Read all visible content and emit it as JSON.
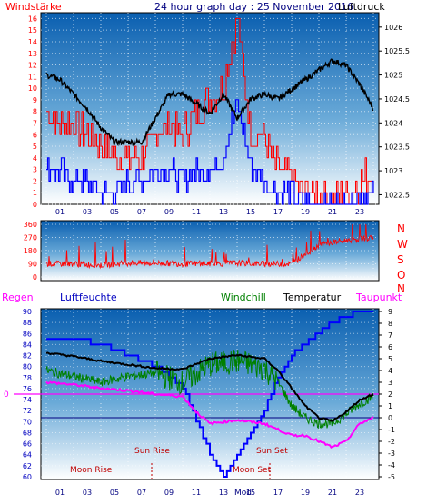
{
  "header": {
    "left": "Windstärke",
    "center": "24 hour graph day : 25 November 2016",
    "right": "Luftdruck"
  },
  "dir_labels": [
    "N",
    "W",
    "S",
    "O",
    "N"
  ],
  "lower_header": {
    "regen": "Regen",
    "luftfeuchte": "Luftfeuchte",
    "windchill": "Windchill",
    "temperatur": "Temperatur",
    "taupunkt": "Taupunkt"
  },
  "annotations": {
    "sun_rise": "Sun Rise",
    "sun_set": "Sun Set",
    "moon_rise": "Moon Rise",
    "moon_set": "Moon Set",
    "mod": "Mod"
  },
  "colors": {
    "wind_gust": "#ff0000",
    "wind_avg": "#0000ff",
    "pressure": "#000000",
    "humidity": "#0000ff",
    "windchill": "#008000",
    "temperature": "#000000",
    "dewpoint": "#ff00ff",
    "rain": "#ff00ff",
    "axis_blue": "#000080",
    "regen_label": "#ff00ff",
    "luftfeuchte_label": "#0000c0",
    "windchill_label": "#008000",
    "temperatur_label": "#000000",
    "taupunkt_label": "#ff00ff"
  },
  "chart_data": [
    {
      "type": "line",
      "name": "wind-pressure",
      "x_tick_labels": [
        "01",
        "03",
        "05",
        "07",
        "09",
        "11",
        "13",
        "15",
        "17",
        "19",
        "21",
        "23"
      ],
      "left_axis_ticks": [
        "16",
        "15",
        "14",
        "13",
        "12",
        "11",
        "10",
        "9",
        "8",
        "7",
        "6",
        "5",
        "4",
        "3",
        "2",
        "1",
        "0"
      ],
      "right_axis_ticks": [
        "1026",
        "1025.5",
        "1025",
        "1024.5",
        "1024",
        "1023.5",
        "1023",
        "1022.5"
      ],
      "left_ylim": [
        0,
        16.5
      ],
      "right_ylim": [
        1022.3,
        1026.3
      ],
      "series": [
        {
          "role": "pressure",
          "x": [
            0,
            1,
            2,
            3,
            4,
            5,
            6,
            7,
            8,
            9,
            10,
            11,
            12,
            13,
            14,
            15,
            16,
            17,
            18,
            19,
            20,
            21,
            22,
            23,
            24
          ],
          "values": [
            1025.0,
            1024.9,
            1024.6,
            1024.3,
            1023.9,
            1023.6,
            1023.6,
            1023.6,
            1024.1,
            1024.6,
            1024.6,
            1024.4,
            1024.2,
            1024.6,
            1024.1,
            1024.5,
            1024.6,
            1024.5,
            1024.7,
            1024.9,
            1025.1,
            1025.3,
            1025.2,
            1024.8,
            1024.3
          ]
        },
        {
          "role": "gust",
          "x": [
            0,
            1,
            2,
            3,
            4,
            5,
            6,
            7,
            8,
            9,
            10,
            11,
            12,
            13,
            14,
            15,
            16,
            17,
            18,
            19,
            20,
            21,
            22,
            23,
            24
          ],
          "values": [
            8,
            7,
            7,
            6,
            5,
            4,
            4,
            4,
            6,
            7,
            6,
            8,
            9,
            10,
            16,
            6,
            6,
            3,
            2,
            1,
            1,
            0,
            1,
            2,
            3
          ]
        },
        {
          "role": "average",
          "x": [
            0,
            1,
            2,
            3,
            4,
            5,
            6,
            7,
            8,
            9,
            10,
            11,
            12,
            13,
            14,
            15,
            16,
            17,
            18,
            19,
            20,
            21,
            22,
            23,
            24
          ],
          "values": [
            3,
            3,
            2,
            2,
            1,
            1,
            2,
            2,
            3,
            3,
            2,
            3,
            3,
            4,
            9,
            3,
            2,
            1,
            1,
            0,
            0,
            0,
            0,
            1,
            1
          ]
        }
      ]
    },
    {
      "type": "line",
      "name": "wind-direction",
      "left_axis_ticks": [
        "360",
        "270",
        "180",
        "90",
        "0"
      ],
      "ylim": [
        0,
        360
      ],
      "series": [
        {
          "role": "direction",
          "x": [
            0,
            2,
            4,
            6,
            8,
            10,
            12,
            14,
            16,
            18,
            20,
            22,
            24
          ],
          "values": [
            90,
            90,
            80,
            95,
            95,
            90,
            90,
            95,
            90,
            90,
            220,
            250,
            270
          ]
        }
      ]
    },
    {
      "type": "line",
      "name": "temp-humidity",
      "left_axis_ticks": [
        "90",
        "88",
        "86",
        "84",
        "82",
        "80",
        "78",
        "76",
        "74",
        "72",
        "70",
        "68",
        "66",
        "64",
        "62",
        "60"
      ],
      "right_axis_ticks": [
        "9",
        "8",
        "7",
        "6",
        "5",
        "4",
        "3",
        "2",
        "1",
        "0",
        "-1",
        "-2",
        "-3",
        "-4",
        "-5"
      ],
      "rain_marker": "0",
      "left_ylim": [
        60,
        90
      ],
      "right_ylim": [
        -5,
        9
      ],
      "series": [
        {
          "role": "humidity",
          "x": [
            0,
            2,
            4,
            6,
            8,
            10,
            11,
            12,
            13,
            14,
            15,
            16,
            17,
            18,
            19,
            20,
            21,
            22,
            23,
            24
          ],
          "values": [
            85,
            85,
            84,
            82,
            80,
            76,
            70,
            64,
            60,
            64,
            68,
            72,
            78,
            82,
            84,
            86,
            88,
            89,
            90,
            90
          ]
        },
        {
          "role": "temperature",
          "x": [
            0,
            2,
            4,
            6,
            8,
            10,
            12,
            14,
            16,
            17,
            18,
            19,
            20,
            21,
            22,
            23,
            24
          ],
          "values": [
            5.5,
            5.2,
            4.8,
            4.5,
            4.2,
            4.1,
            5.0,
            5.3,
            5.0,
            4.0,
            2.5,
            1.0,
            0.0,
            -0.3,
            0.5,
            1.5,
            2.0
          ]
        },
        {
          "role": "windchill",
          "x": [
            0,
            2,
            4,
            6,
            8,
            10,
            12,
            14,
            16,
            17,
            18,
            19,
            20,
            21,
            22,
            23,
            24
          ],
          "values": [
            4.0,
            3.5,
            3.0,
            3.5,
            3.8,
            3.0,
            4.5,
            4.8,
            4.2,
            3.0,
            1.0,
            0.0,
            -0.5,
            -0.5,
            0.3,
            1.2,
            1.8
          ]
        },
        {
          "role": "dewpoint",
          "x": [
            0,
            2,
            4,
            6,
            8,
            10,
            11,
            12,
            14,
            16,
            17,
            18,
            19,
            20,
            21,
            22,
            23,
            24
          ],
          "values": [
            3.0,
            2.8,
            2.5,
            2.3,
            2.0,
            1.8,
            0.5,
            -0.5,
            -0.2,
            -0.5,
            -1.0,
            -1.5,
            -1.5,
            -2.0,
            -2.5,
            -2.0,
            -0.5,
            0.0
          ]
        }
      ]
    }
  ]
}
